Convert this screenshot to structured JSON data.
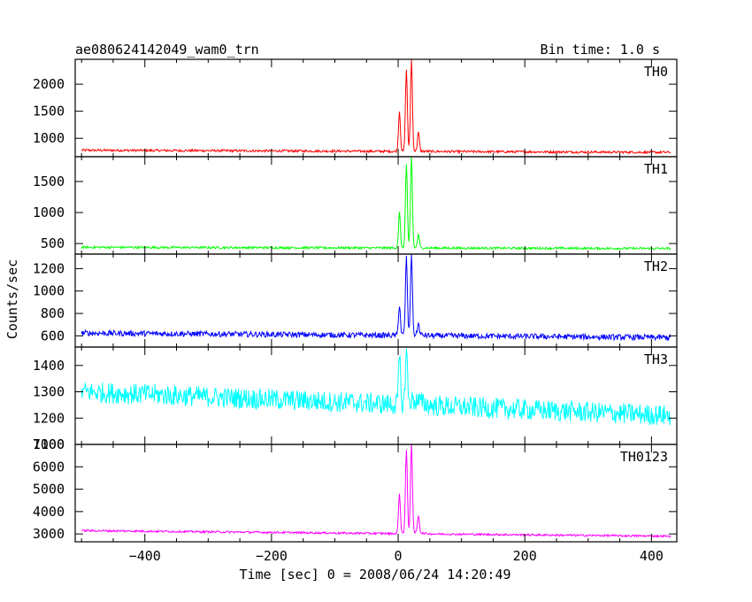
{
  "chart_data": {
    "type": "line",
    "title": "ae080624142049_wam0_trn",
    "subtitle": "Bin time: 1.0 s",
    "xlabel": "Time [sec] 0 = 2008/06/24 14:20:49",
    "ylabel": "Counts/sec",
    "xlim": [
      -510,
      440
    ],
    "data_range": [
      -500,
      430
    ],
    "xticks": [
      -400,
      -200,
      0,
      200,
      400
    ],
    "grid": false,
    "panels": [
      {
        "name": "TH0",
        "color": "#ff0000",
        "ylim": [
          660,
          2460
        ],
        "yticks": [
          1000,
          1500,
          2000
        ],
        "baseline_start": 780,
        "baseline_end": 740,
        "noise": 22,
        "peaks": [
          {
            "t": 2,
            "value": 1500
          },
          {
            "t": 13,
            "value": 2250
          },
          {
            "t": 21,
            "value": 2460
          },
          {
            "t": 32,
            "value": 1100
          }
        ]
      },
      {
        "name": "TH1",
        "color": "#00ff00",
        "ylim": [
          330,
          1900
        ],
        "yticks": [
          500,
          1000,
          1500
        ],
        "baseline_start": 440,
        "baseline_end": 420,
        "noise": 18,
        "peaks": [
          {
            "t": 2,
            "value": 1000
          },
          {
            "t": 13,
            "value": 1770
          },
          {
            "t": 21,
            "value": 1900
          },
          {
            "t": 32,
            "value": 640
          }
        ]
      },
      {
        "name": "TH2",
        "color": "#0000ff",
        "ylim": [
          500,
          1330
        ],
        "yticks": [
          600,
          800,
          1000,
          1200
        ],
        "baseline_start": 625,
        "baseline_end": 585,
        "noise": 25,
        "peaks": [
          {
            "t": 2,
            "value": 880
          },
          {
            "t": 13,
            "value": 1290
          },
          {
            "t": 21,
            "value": 1330
          },
          {
            "t": 32,
            "value": 700
          }
        ]
      },
      {
        "name": "TH3",
        "color": "#00ffff",
        "ylim": [
          1100,
          1470
        ],
        "yticks": [
          1100,
          1200,
          1300,
          1400
        ],
        "baseline_start": 1300,
        "baseline_end": 1210,
        "noise": 40,
        "peaks": [
          {
            "t": 2,
            "value": 1430
          },
          {
            "t": 13,
            "value": 1450
          }
        ]
      },
      {
        "name": "TH0123",
        "color": "#ff00ff",
        "ylim": [
          2650,
          7000
        ],
        "yticks": [
          3000,
          4000,
          5000,
          6000,
          7000
        ],
        "baseline_start": 3150,
        "baseline_end": 2900,
        "noise": 45,
        "peaks": [
          {
            "t": 2,
            "value": 4800
          },
          {
            "t": 13,
            "value": 6700
          },
          {
            "t": 21,
            "value": 7000
          },
          {
            "t": 32,
            "value": 3800
          }
        ]
      }
    ]
  }
}
